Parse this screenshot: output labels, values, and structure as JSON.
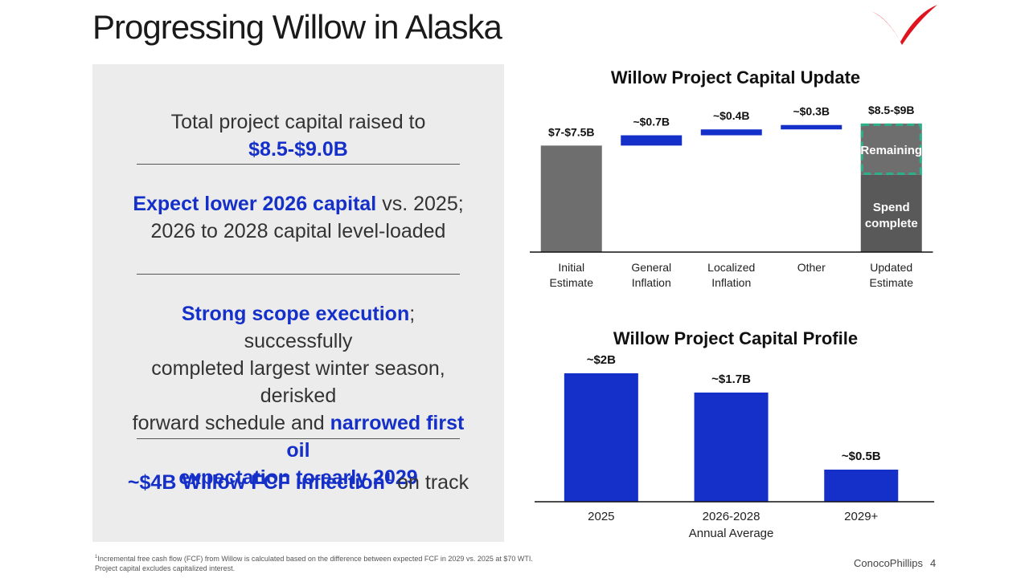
{
  "page": {
    "title": "Progressing Willow in Alaska",
    "brand": "ConocoPhillips",
    "page_number": "4",
    "footnote_line1": "Incremental free cash flow (FCF) from Willow is calculated based on the difference between expected FCF in 2029 vs. 2025 at $70 WTI.",
    "footnote_line2": "Project capital excludes capitalized interest.",
    "footnote_marker": "1"
  },
  "panel": {
    "point1_pre": "Total project capital raised to ",
    "point1_hl": "$8.5-$9.0B",
    "point2_hl": "Expect lower 2026 capital",
    "point2_post": " vs. 2025;",
    "point2_line2": "2026 to 2028 capital level-loaded",
    "point3_hl1": "Strong scope execution",
    "point3_mid1": "; successfully",
    "point3_line2": "completed largest winter season, derisked",
    "point3_line3_pre": "forward schedule and ",
    "point3_hl2": "narrowed first oil",
    "point3_line4": "expectation to early 2029",
    "point4_hl": "~$4B Willow FCF inflection",
    "point4_sup": "1",
    "point4_post": " on track"
  },
  "colors": {
    "blue": "#1530c9",
    "gray": "#6e6e6e",
    "dark_gray": "#595959",
    "teal": "#2bb08a",
    "logo_red": "#e0141e"
  },
  "chart_data": [
    {
      "type": "bar",
      "subtype": "waterfall",
      "title": "Willow Project Capital Update",
      "categories": [
        [
          "Initial",
          "Estimate"
        ],
        [
          "General",
          "Inflation"
        ],
        [
          "Localized",
          "Inflation"
        ],
        [
          "Other"
        ],
        [
          "Updated",
          "Estimate"
        ]
      ],
      "values": [
        7.25,
        0.7,
        0.4,
        0.3,
        8.75
      ],
      "kinds": [
        "total",
        "increment",
        "increment",
        "increment",
        "total"
      ],
      "value_labels": [
        "$7-$7.5B",
        "~$0.7B",
        "~$0.4B",
        "~$0.3B",
        "$8.5-$9B"
      ],
      "updated_estimate_segments": {
        "remaining": "Remaining",
        "spend_complete": "Spend complete"
      },
      "ylim": [
        0,
        9.4
      ]
    },
    {
      "type": "bar",
      "title": "Willow Project Capital Profile",
      "categories": [
        [
          "2025"
        ],
        [
          "2026-2028",
          "Annual Average"
        ],
        [
          "2029+"
        ]
      ],
      "values": [
        2.0,
        1.7,
        0.5
      ],
      "value_labels": [
        "~$2B",
        "~$1.7B",
        "~$0.5B"
      ],
      "ylim": [
        0,
        2.1
      ]
    }
  ]
}
